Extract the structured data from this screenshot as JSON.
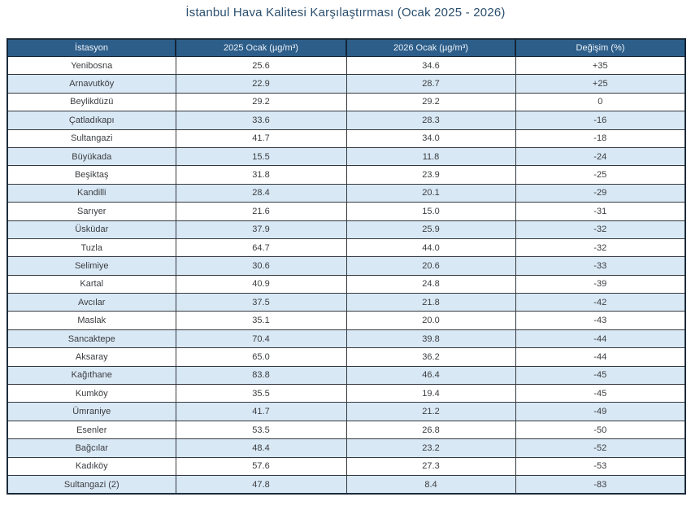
{
  "title": "İstanbul Hava Kalitesi Karşılaştırması (Ocak 2025 - 2026)",
  "colors": {
    "title_text": "#2b4f6e",
    "header_background": "#2d5e8a",
    "header_text": "#eef3f9",
    "row_stripe": "#d9e8f5",
    "row_plain": "#ffffff",
    "cell_border": "#34393f",
    "outer_border": "#1d2b3a",
    "body_text": "#3a3d40"
  },
  "chart_data": {
    "type": "table",
    "title": "İstanbul Hava Kalitesi Karşılaştırması (Ocak 2025 - 2026)",
    "columns": [
      "İstasyon",
      "2025 Ocak (µg/m³)",
      "2026 Ocak (µg/m³)",
      "Değişim (%)"
    ],
    "rows": [
      [
        "Yenibosna",
        "25.6",
        "34.6",
        "+35"
      ],
      [
        "Arnavutköy",
        "22.9",
        "28.7",
        "+25"
      ],
      [
        "Beylikdüzü",
        "29.2",
        "29.2",
        "0"
      ],
      [
        "Çatladıkapı",
        "33.6",
        "28.3",
        "-16"
      ],
      [
        "Sultangazi",
        "41.7",
        "34.0",
        "-18"
      ],
      [
        "Büyükada",
        "15.5",
        "11.8",
        "-24"
      ],
      [
        "Beşiktaş",
        "31.8",
        "23.9",
        "-25"
      ],
      [
        "Kandilli",
        "28.4",
        "20.1",
        "-29"
      ],
      [
        "Sarıyer",
        "21.6",
        "15.0",
        "-31"
      ],
      [
        "Üsküdar",
        "37.9",
        "25.9",
        "-32"
      ],
      [
        "Tuzla",
        "64.7",
        "44.0",
        "-32"
      ],
      [
        "Selimiye",
        "30.6",
        "20.6",
        "-33"
      ],
      [
        "Kartal",
        "40.9",
        "24.8",
        "-39"
      ],
      [
        "Avcılar",
        "37.5",
        "21.8",
        "-42"
      ],
      [
        "Maslak",
        "35.1",
        "20.0",
        "-43"
      ],
      [
        "Sancaktepe",
        "70.4",
        "39.8",
        "-44"
      ],
      [
        "Aksaray",
        "65.0",
        "36.2",
        "-44"
      ],
      [
        "Kağıthane",
        "83.8",
        "46.4",
        "-45"
      ],
      [
        "Kumköy",
        "35.5",
        "19.4",
        "-45"
      ],
      [
        "Ümraniye",
        "41.7",
        "21.2",
        "-49"
      ],
      [
        "Esenler",
        "53.5",
        "26.8",
        "-50"
      ],
      [
        "Bağcılar",
        "48.4",
        "23.2",
        "-52"
      ],
      [
        "Kadıköy",
        "57.6",
        "27.3",
        "-53"
      ],
      [
        "Sultangazi (2)",
        "47.8",
        "8.4",
        "-83"
      ]
    ]
  }
}
